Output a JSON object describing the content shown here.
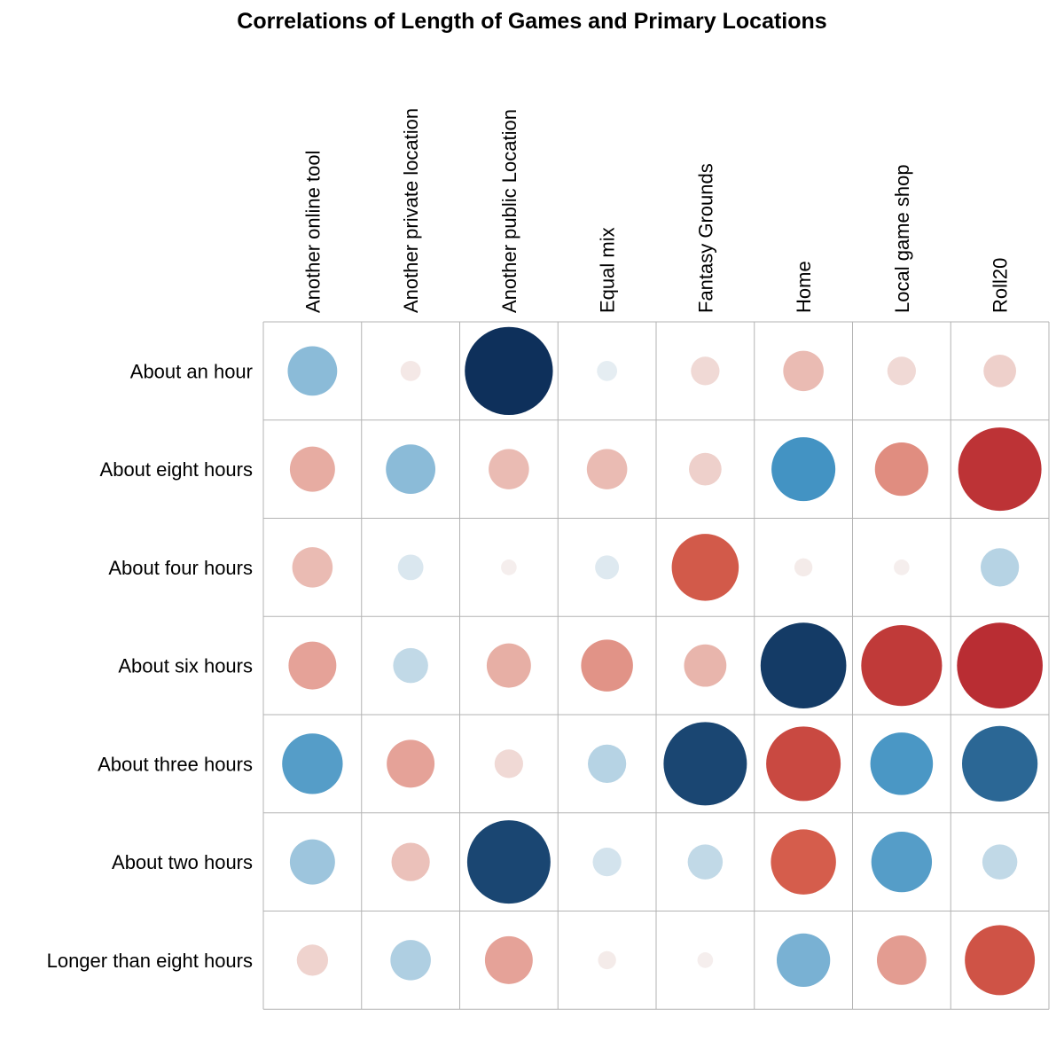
{
  "chart_data": {
    "type": "heatmap",
    "title": "Correlations of Length of Games and Primary Locations",
    "columns": [
      "Another online tool",
      "Another private location",
      "Another public Location",
      "Equal mix",
      "Fantasy Grounds",
      "Home",
      "Local game shop",
      "Roll20"
    ],
    "rows": [
      "About an hour",
      "About eight hours",
      "About four hours",
      "About six hours",
      "About three hours",
      "About two hours",
      "Longer than eight hours"
    ],
    "values": [
      [
        -0.3,
        0.05,
        -0.95,
        -0.05,
        0.1,
        0.2,
        0.1,
        0.13
      ],
      [
        0.25,
        -0.3,
        0.2,
        0.2,
        0.13,
        -0.5,
        0.35,
        0.85
      ],
      [
        0.2,
        -0.08,
        0.03,
        -0.07,
        0.55,
        0.04,
        0.03,
        -0.18
      ],
      [
        0.28,
        -0.15,
        0.24,
        0.33,
        0.22,
        -0.9,
        0.8,
        0.9
      ],
      [
        -0.45,
        0.28,
        0.1,
        -0.18,
        -0.85,
        0.68,
        -0.48,
        -0.7
      ],
      [
        -0.25,
        0.18,
        -0.85,
        -0.1,
        -0.15,
        0.52,
        -0.45,
        -0.15
      ],
      [
        0.12,
        -0.2,
        0.28,
        0.04,
        0.03,
        -0.35,
        0.3,
        0.6
      ]
    ],
    "color_scale": {
      "negative": "#08254f",
      "mid": "#f7f7f7",
      "positive": "#b2202c"
    },
    "grid": true
  }
}
